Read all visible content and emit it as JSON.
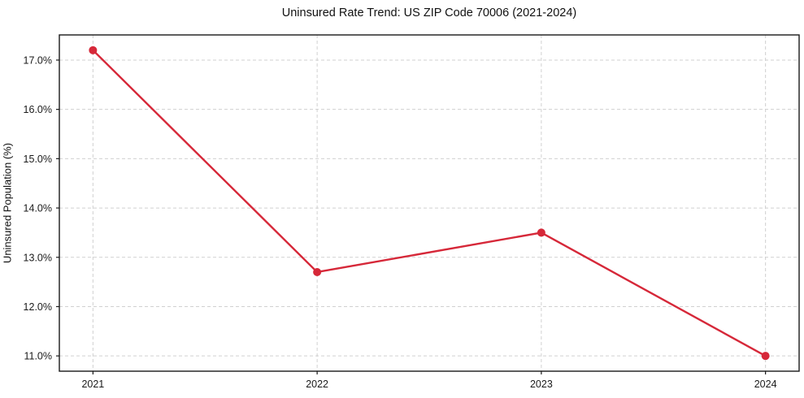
{
  "chart_data": {
    "type": "line",
    "title": "Uninsured Rate Trend: US ZIP Code 70006 (2021-2024)",
    "xlabel": "",
    "ylabel": "Uninsured Population (%)",
    "x": [
      2021,
      2022,
      2023,
      2024
    ],
    "series": [
      {
        "name": "Uninsured rate",
        "values": [
          17.2,
          12.7,
          13.5,
          11.0
        ]
      }
    ],
    "xticks": [
      "2021",
      "2022",
      "2023",
      "2024"
    ],
    "ytick_values": [
      11,
      12,
      13,
      14,
      15,
      16,
      17
    ],
    "ytick_labels": [
      "11.0%",
      "12.0%",
      "13.0%",
      "14.0%",
      "15.0%",
      "16.0%",
      "17.0%"
    ],
    "xlim": [
      2020.85,
      2024.15
    ],
    "ylim": [
      10.69,
      17.51
    ],
    "grid": true,
    "legend": false,
    "colors": {
      "line": "#d62839",
      "marker": "#d62839",
      "grid": "#cccccc",
      "spine": "#1a1a1a",
      "tick_text": "#1a1a1a"
    },
    "marker": "circle"
  }
}
